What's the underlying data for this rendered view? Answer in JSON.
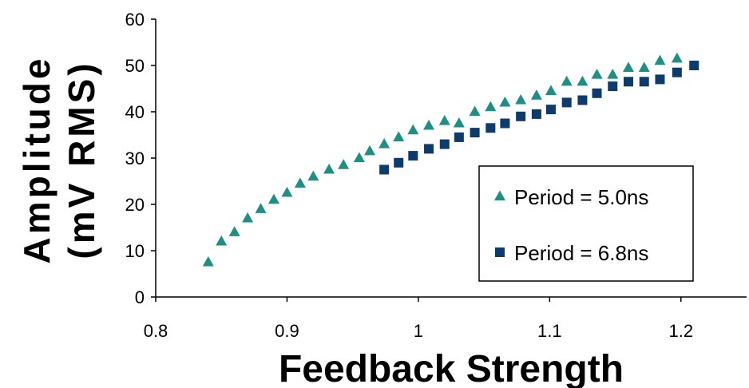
{
  "chart_data": {
    "type": "scatter",
    "title": "",
    "xlabel": "Feedback Strength",
    "ylabel": [
      "Amplitude",
      "(mV RMS)"
    ],
    "xlim": [
      0.8,
      1.25
    ],
    "ylim": [
      0,
      60
    ],
    "x_ticks": [
      "0.8",
      "0.9",
      "1",
      "1.1",
      "1.2"
    ],
    "y_ticks": [
      "0",
      "10",
      "20",
      "30",
      "40",
      "50",
      "60"
    ],
    "grid": false,
    "legend_position": "lower-right",
    "series": [
      {
        "name": "Period = 5.0ns",
        "marker": "triangle",
        "color": "#1f8f86",
        "x": [
          0.84,
          0.85,
          0.86,
          0.87,
          0.88,
          0.89,
          0.9,
          0.91,
          0.92,
          0.932,
          0.943,
          0.955,
          0.963,
          0.974,
          0.985,
          0.996,
          1.008,
          1.02,
          1.031,
          1.043,
          1.055,
          1.066,
          1.078,
          1.09,
          1.101,
          1.113,
          1.125,
          1.136,
          1.148,
          1.16,
          1.172,
          1.184,
          1.197
        ],
        "y": [
          7.5,
          12,
          14,
          17,
          19,
          21,
          22.5,
          24.5,
          26,
          27.5,
          28.5,
          30,
          31.5,
          33,
          34.5,
          36,
          37,
          38,
          37.5,
          40,
          41,
          42,
          42.5,
          43.5,
          44.5,
          46.5,
          46.5,
          48,
          48,
          49.5,
          49.5,
          51,
          51.5
        ]
      },
      {
        "name": "Period = 6.8ns",
        "marker": "square",
        "color": "#0d3b6e",
        "x": [
          0.974,
          0.985,
          0.996,
          1.008,
          1.02,
          1.031,
          1.043,
          1.055,
          1.066,
          1.078,
          1.09,
          1.101,
          1.113,
          1.125,
          1.136,
          1.148,
          1.16,
          1.172,
          1.184,
          1.197,
          1.21
        ],
        "y": [
          27.5,
          29,
          30.5,
          32,
          33,
          34.5,
          35.5,
          36.5,
          37.5,
          39,
          39.5,
          40.5,
          42,
          42.5,
          44,
          45.5,
          46.5,
          46.5,
          47,
          48.5,
          50
        ]
      }
    ]
  }
}
